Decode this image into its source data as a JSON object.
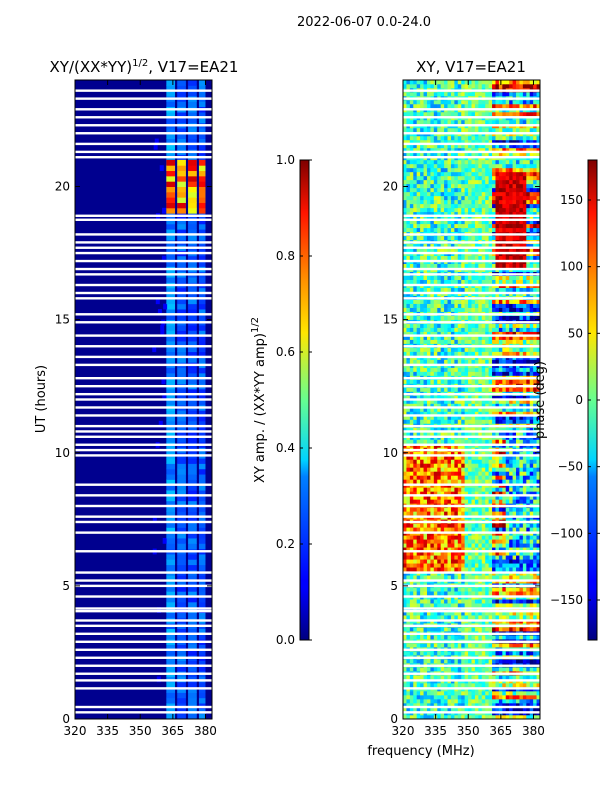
{
  "chart_data": {
    "type": "heatmap",
    "suptitle": "2022-06-07 0.0-24.0",
    "xlabel": "frequency (MHz)",
    "panels": [
      {
        "title_main": "XY/(XX*YY)",
        "title_sup": "1/2",
        "title_rest": ", V17=EA21",
        "xlim": [
          320,
          383
        ],
        "ylim": [
          0,
          24
        ],
        "xticks": [
          "320",
          "335",
          "350",
          "365",
          "380"
        ],
        "xtick_values": [
          320,
          335,
          350,
          365,
          380
        ],
        "yticks": [
          "0",
          "5",
          "10",
          "15",
          "20"
        ],
        "ytick_values": [
          0,
          5,
          10,
          15,
          20
        ],
        "ylabel": "UT (hours)",
        "colorbar": {
          "label_main": "XY amp. / (XX*YY amp)",
          "label_sup": "1/2",
          "range": [
            0,
            1
          ],
          "ticks": [
            "0.0",
            "0.2",
            "0.4",
            "0.6",
            "0.8",
            "1.0"
          ],
          "tick_values": [
            0,
            0.2,
            0.4,
            0.6,
            0.8,
            1.0
          ]
        }
      },
      {
        "title_main": "XY, V17=EA21",
        "xlim": [
          320,
          383
        ],
        "ylim": [
          0,
          24
        ],
        "xticks": [
          "320",
          "335",
          "350",
          "365",
          "380"
        ],
        "xtick_values": [
          320,
          335,
          350,
          365,
          380
        ],
        "yticks": [
          "0",
          "5",
          "10",
          "15",
          "20"
        ],
        "ytick_values": [
          0,
          5,
          10,
          15,
          20
        ],
        "colorbar": {
          "label_main": "phase (deg)",
          "range": [
            -180,
            180
          ],
          "ticks": [
            "−150",
            "−100",
            "−50",
            "0",
            "50",
            "100",
            "150"
          ],
          "tick_values": [
            -150,
            -100,
            -50,
            0,
            50,
            100,
            150
          ]
        }
      }
    ],
    "features": {
      "gap_hours": [
        0.25,
        0.45,
        1.15,
        1.45,
        1.7,
        2.0,
        2.3,
        2.6,
        2.9,
        3.2,
        3.5,
        3.7,
        4.05,
        4.15,
        4.6,
        5.0,
        5.2,
        5.5,
        6.3,
        7.0,
        7.4,
        7.6,
        8.0,
        8.4,
        8.8,
        9.9,
        10.1,
        10.3,
        10.6,
        10.8,
        11.0,
        11.4,
        11.7,
        12.0,
        12.2,
        12.5,
        12.8,
        13.3,
        13.6,
        14.0,
        14.4,
        14.9,
        15.2,
        15.8,
        16.0,
        16.3,
        16.7,
        16.9,
        17.2,
        17.5,
        17.7,
        17.9,
        18.2,
        18.75,
        18.9,
        21.1,
        21.3,
        21.6,
        22.0,
        22.3,
        22.6,
        22.9,
        23.3,
        23.6
      ],
      "amp_bright_channels_MHz": [
        [
          362,
          366
        ],
        [
          367,
          371
        ],
        [
          372,
          376
        ],
        [
          377,
          380
        ]
      ],
      "amp_flare_hours": [
        19.0,
        20.9
      ],
      "phase_ramp_hours": [
        5.6,
        10.3
      ]
    }
  }
}
